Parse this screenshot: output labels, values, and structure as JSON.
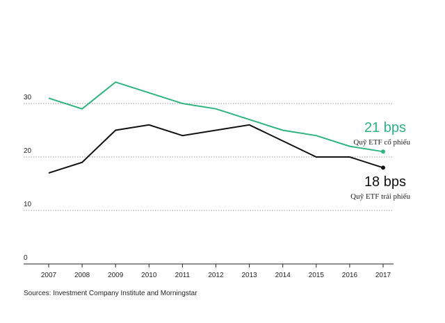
{
  "chart_data": {
    "type": "line",
    "x": [
      2007,
      2008,
      2009,
      2010,
      2011,
      2012,
      2013,
      2014,
      2015,
      2016,
      2017
    ],
    "ylim": [
      0,
      35
    ],
    "yticks": [
      0,
      10,
      20,
      30
    ],
    "grid": "dotted horizontal",
    "series": [
      {
        "name": "Quỹ ETF cổ phiếu",
        "color": "#2fb380",
        "values": [
          31,
          29,
          34,
          32,
          30,
          29,
          27,
          25,
          24,
          22,
          21
        ],
        "end_value_label": "21 bps"
      },
      {
        "name": "Quỹ ETF trái phiếu",
        "color": "#111111",
        "values": [
          17,
          19,
          25,
          26,
          24,
          25,
          26,
          23,
          20,
          20,
          18
        ],
        "end_value_label": "18 bps"
      }
    ],
    "source": "Sources: Investment Company Institute and Morningstar"
  }
}
